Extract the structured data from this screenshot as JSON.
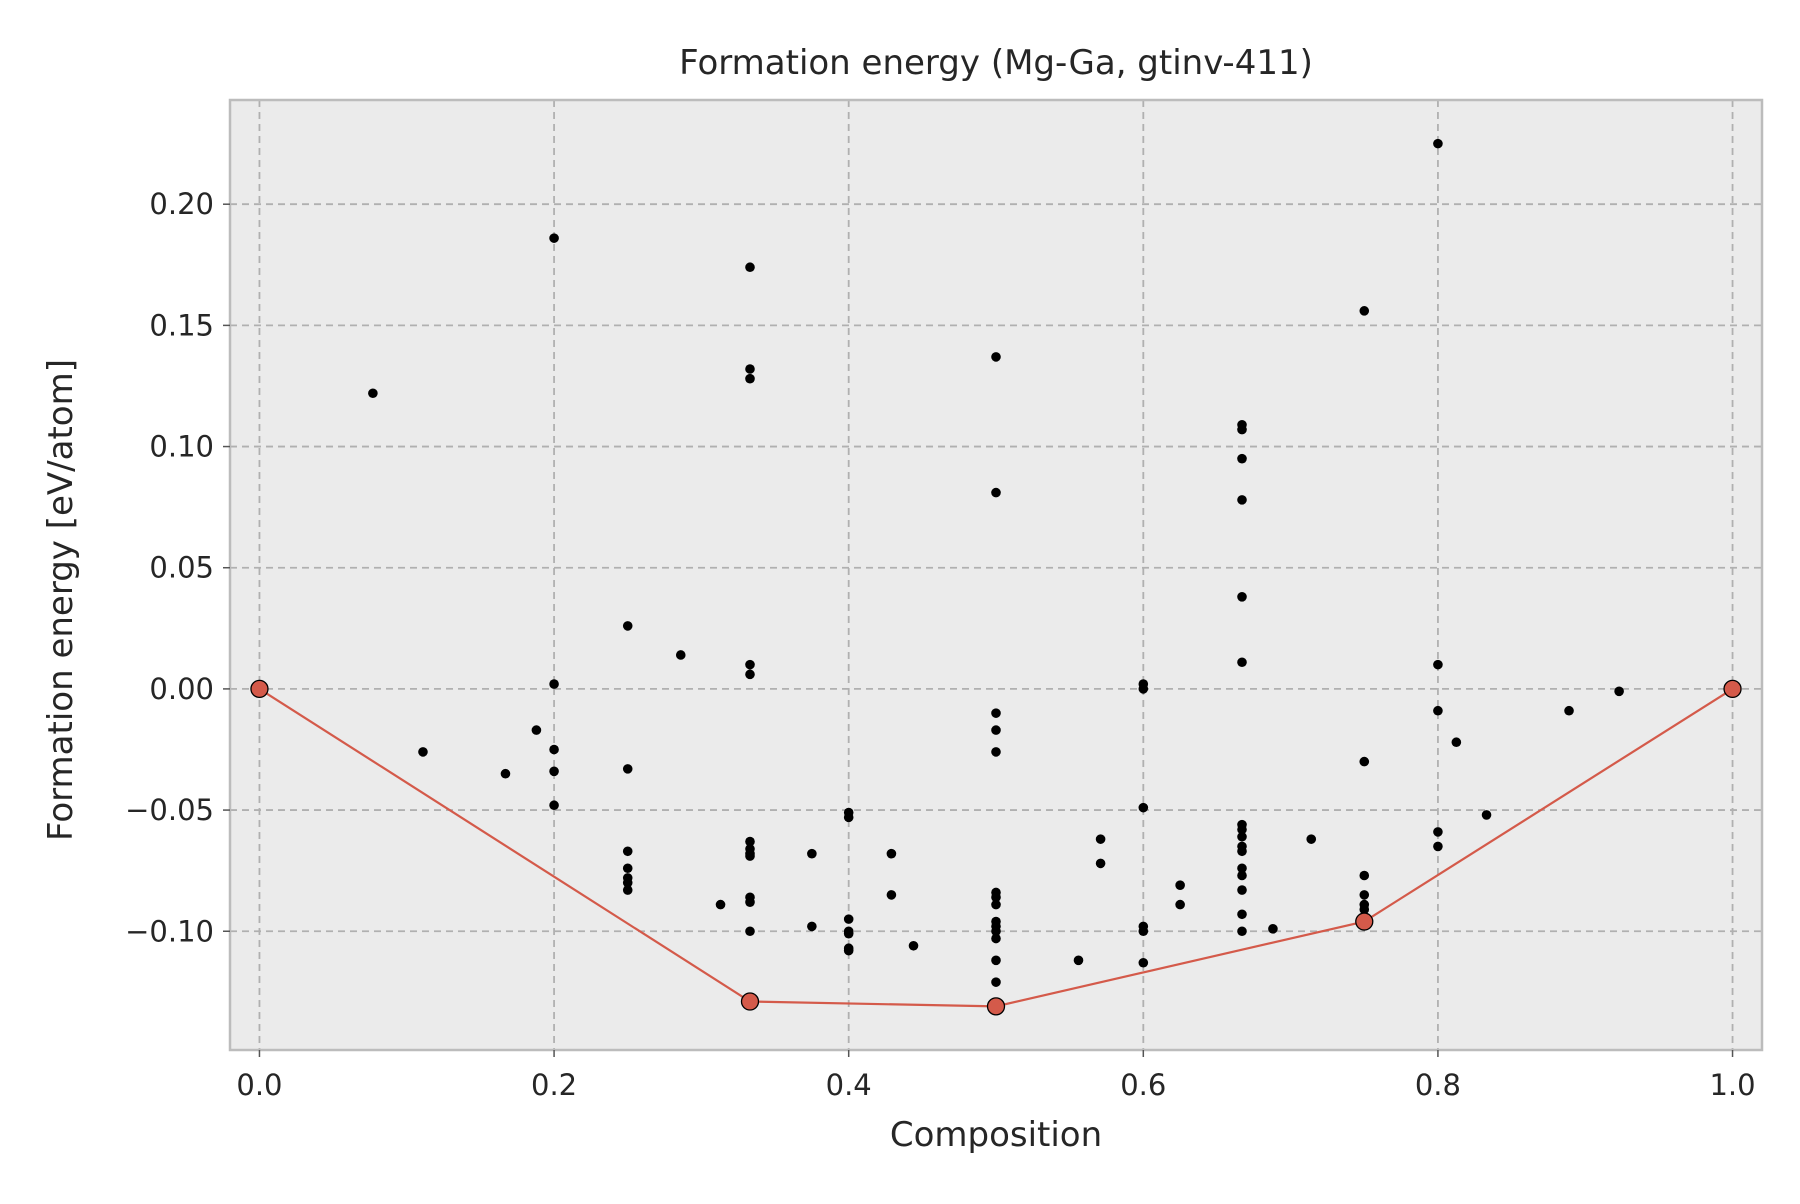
{
  "chart_data": {
    "type": "scatter",
    "title": "Formation energy (Mg-Ga, gtinv-411)",
    "xlabel": "Composition",
    "ylabel": "Formation energy [eV/atom]",
    "xlim": [
      -0.02,
      1.02
    ],
    "ylim": [
      -0.149,
      0.243
    ],
    "xticks": [
      0.0,
      0.2,
      0.4,
      0.6,
      0.8,
      1.0
    ],
    "xtick_labels": [
      "0.0",
      "0.2",
      "0.4",
      "0.6",
      "0.8",
      "1.0"
    ],
    "yticks": [
      -0.1,
      -0.05,
      0.0,
      0.05,
      0.1,
      0.15,
      0.2
    ],
    "ytick_labels": [
      "−0.10",
      "−0.05",
      "0.00",
      "0.05",
      "0.10",
      "0.15",
      "0.20"
    ],
    "grid": true,
    "colors": {
      "background": "#ebebeb",
      "grid": "#b0b0b0",
      "spine": "#bcbcbc",
      "points": "#000000",
      "hull": "#d45a4a"
    },
    "series": [
      {
        "kind": "scatter",
        "points": [
          [
            0.077,
            0.122
          ],
          [
            0.111,
            -0.026
          ],
          [
            0.167,
            -0.035
          ],
          [
            0.188,
            -0.017
          ],
          [
            0.2,
            0.186
          ],
          [
            0.2,
            0.002
          ],
          [
            0.2,
            -0.025
          ],
          [
            0.2,
            -0.034
          ],
          [
            0.2,
            -0.048
          ],
          [
            0.25,
            0.026
          ],
          [
            0.25,
            -0.033
          ],
          [
            0.25,
            -0.067
          ],
          [
            0.25,
            -0.074
          ],
          [
            0.25,
            -0.078
          ],
          [
            0.25,
            -0.08
          ],
          [
            0.25,
            -0.083
          ],
          [
            0.286,
            0.014
          ],
          [
            0.313,
            -0.089
          ],
          [
            0.333,
            0.174
          ],
          [
            0.333,
            0.132
          ],
          [
            0.333,
            0.128
          ],
          [
            0.333,
            0.01
          ],
          [
            0.333,
            0.006
          ],
          [
            0.333,
            -0.063
          ],
          [
            0.333,
            -0.066
          ],
          [
            0.333,
            -0.068
          ],
          [
            0.333,
            -0.069
          ],
          [
            0.333,
            -0.086
          ],
          [
            0.333,
            -0.088
          ],
          [
            0.333,
            -0.1
          ],
          [
            0.375,
            -0.068
          ],
          [
            0.375,
            -0.098
          ],
          [
            0.4,
            -0.051
          ],
          [
            0.4,
            -0.053
          ],
          [
            0.4,
            -0.095
          ],
          [
            0.4,
            -0.1
          ],
          [
            0.4,
            -0.101
          ],
          [
            0.4,
            -0.107
          ],
          [
            0.4,
            -0.108
          ],
          [
            0.429,
            -0.068
          ],
          [
            0.429,
            -0.085
          ],
          [
            0.444,
            -0.106
          ],
          [
            0.5,
            0.137
          ],
          [
            0.5,
            0.081
          ],
          [
            0.5,
            -0.01
          ],
          [
            0.5,
            -0.017
          ],
          [
            0.5,
            -0.026
          ],
          [
            0.5,
            -0.084
          ],
          [
            0.5,
            -0.086
          ],
          [
            0.5,
            -0.089
          ],
          [
            0.5,
            -0.096
          ],
          [
            0.5,
            -0.098
          ],
          [
            0.5,
            -0.1
          ],
          [
            0.5,
            -0.103
          ],
          [
            0.5,
            -0.112
          ],
          [
            0.5,
            -0.121
          ],
          [
            0.556,
            -0.112
          ],
          [
            0.571,
            -0.062
          ],
          [
            0.571,
            -0.072
          ],
          [
            0.6,
            0.002
          ],
          [
            0.6,
            0.0
          ],
          [
            0.6,
            -0.049
          ],
          [
            0.6,
            -0.098
          ],
          [
            0.6,
            -0.1
          ],
          [
            0.6,
            -0.113
          ],
          [
            0.625,
            -0.081
          ],
          [
            0.625,
            -0.089
          ],
          [
            0.667,
            0.109
          ],
          [
            0.667,
            0.107
          ],
          [
            0.667,
            0.095
          ],
          [
            0.667,
            0.078
          ],
          [
            0.667,
            0.038
          ],
          [
            0.667,
            0.011
          ],
          [
            0.667,
            -0.056
          ],
          [
            0.667,
            -0.058
          ],
          [
            0.667,
            -0.061
          ],
          [
            0.667,
            -0.065
          ],
          [
            0.667,
            -0.067
          ],
          [
            0.667,
            -0.074
          ],
          [
            0.667,
            -0.077
          ],
          [
            0.667,
            -0.083
          ],
          [
            0.667,
            -0.093
          ],
          [
            0.667,
            -0.1
          ],
          [
            0.688,
            -0.099
          ],
          [
            0.714,
            -0.062
          ],
          [
            0.75,
            0.156
          ],
          [
            0.75,
            -0.03
          ],
          [
            0.75,
            -0.077
          ],
          [
            0.75,
            -0.085
          ],
          [
            0.75,
            -0.089
          ],
          [
            0.75,
            -0.091
          ],
          [
            0.8,
            0.225
          ],
          [
            0.8,
            0.01
          ],
          [
            0.8,
            -0.009
          ],
          [
            0.8,
            -0.059
          ],
          [
            0.8,
            -0.065
          ],
          [
            0.8125,
            -0.022
          ],
          [
            0.833,
            -0.052
          ],
          [
            0.889,
            -0.009
          ],
          [
            0.923,
            -0.001
          ]
        ]
      },
      {
        "kind": "hull",
        "points": [
          [
            0.0,
            0.0
          ],
          [
            0.333,
            -0.129
          ],
          [
            0.5,
            -0.131
          ],
          [
            0.75,
            -0.096
          ],
          [
            1.0,
            0.0
          ]
        ]
      }
    ]
  }
}
